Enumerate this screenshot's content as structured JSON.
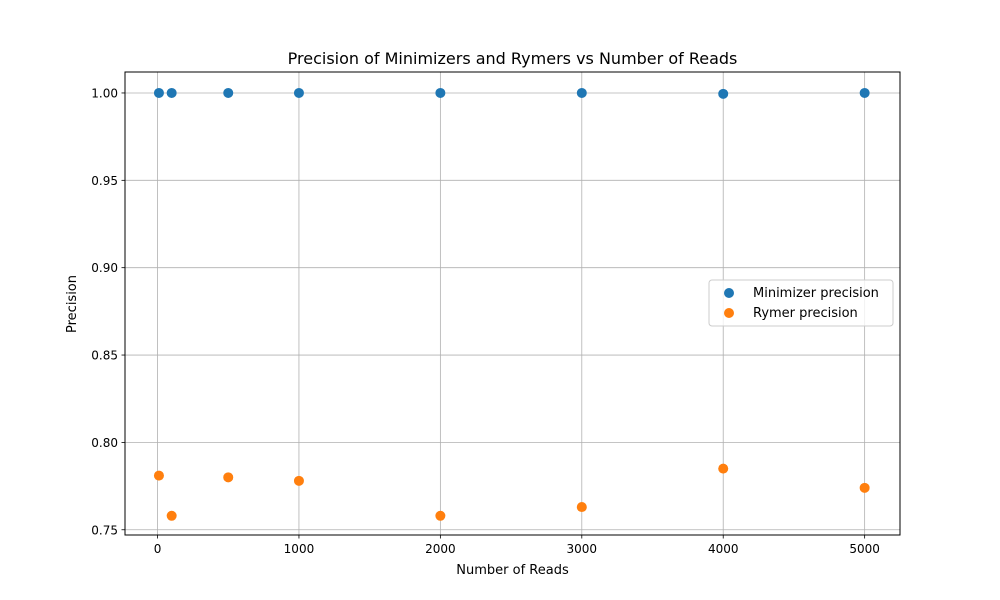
{
  "chart_data": {
    "type": "scatter",
    "title": "Precision of Minimizers and Rymers vs Number of Reads",
    "xlabel": "Number of Reads",
    "ylabel": "Precision",
    "xlim": [
      -230,
      5250
    ],
    "ylim": [
      0.747,
      1.012
    ],
    "xticks": [
      0,
      1000,
      2000,
      3000,
      4000,
      5000
    ],
    "xtick_labels": [
      "0",
      "1000",
      "2000",
      "3000",
      "4000",
      "5000"
    ],
    "yticks": [
      0.75,
      0.8,
      0.85,
      0.9,
      0.95,
      1.0
    ],
    "ytick_labels": [
      "0.75",
      "0.80",
      "0.85",
      "0.90",
      "0.95",
      "1.00"
    ],
    "grid": true,
    "legend_position": "center-right",
    "series": [
      {
        "name": "Minimizer precision",
        "color": "#1f77b4",
        "x": [
          10,
          100,
          500,
          1000,
          2000,
          3000,
          4000,
          5000
        ],
        "y": [
          1.0,
          1.0,
          1.0,
          1.0,
          1.0,
          1.0,
          0.9995,
          1.0
        ]
      },
      {
        "name": "Rymer precision",
        "color": "#ff7f0e",
        "x": [
          10,
          100,
          500,
          1000,
          2000,
          3000,
          4000,
          5000
        ],
        "y": [
          0.781,
          0.758,
          0.78,
          0.778,
          0.758,
          0.763,
          0.785,
          0.774
        ]
      }
    ]
  }
}
